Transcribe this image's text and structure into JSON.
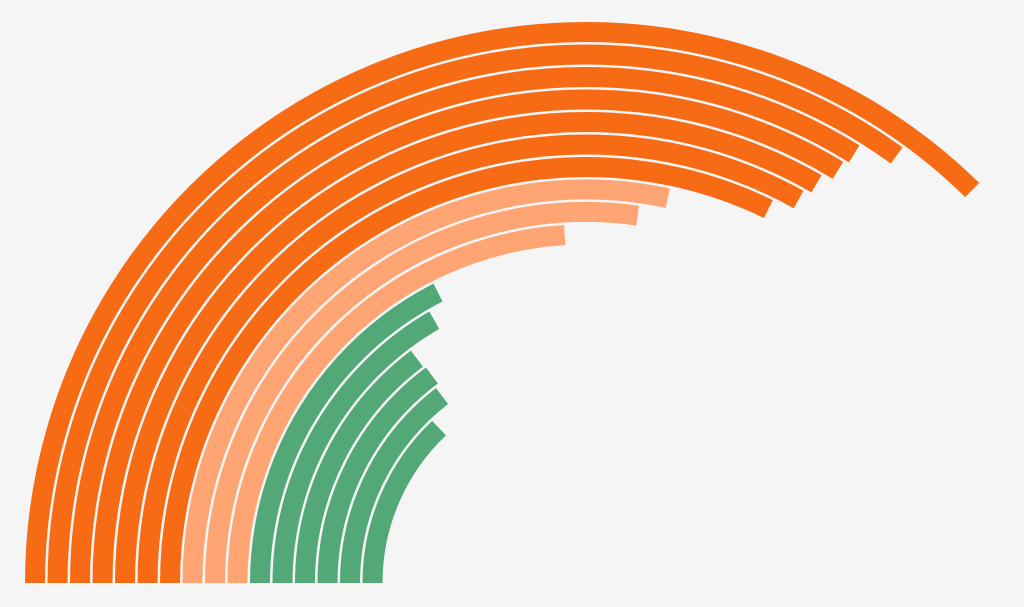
{
  "chart_data": {
    "type": "radial-bar",
    "values": [
      134.5,
      126,
      122,
      121.4,
      120,
      119,
      116,
      102,
      98,
      86.5,
      63,
      60,
      53,
      53.4,
      52.4,
      46.5
    ],
    "colors": [
      "#f76b15",
      "#f76b15",
      "#f76b15",
      "#f76b15",
      "#f76b15",
      "#f76b15",
      "#f76b15",
      "#ffa574",
      "#ffa574",
      "#ffa574",
      "#52a877",
      "#52a877",
      "#52a877",
      "#52a877",
      "#52a877",
      "#52a877"
    ]
  }
}
